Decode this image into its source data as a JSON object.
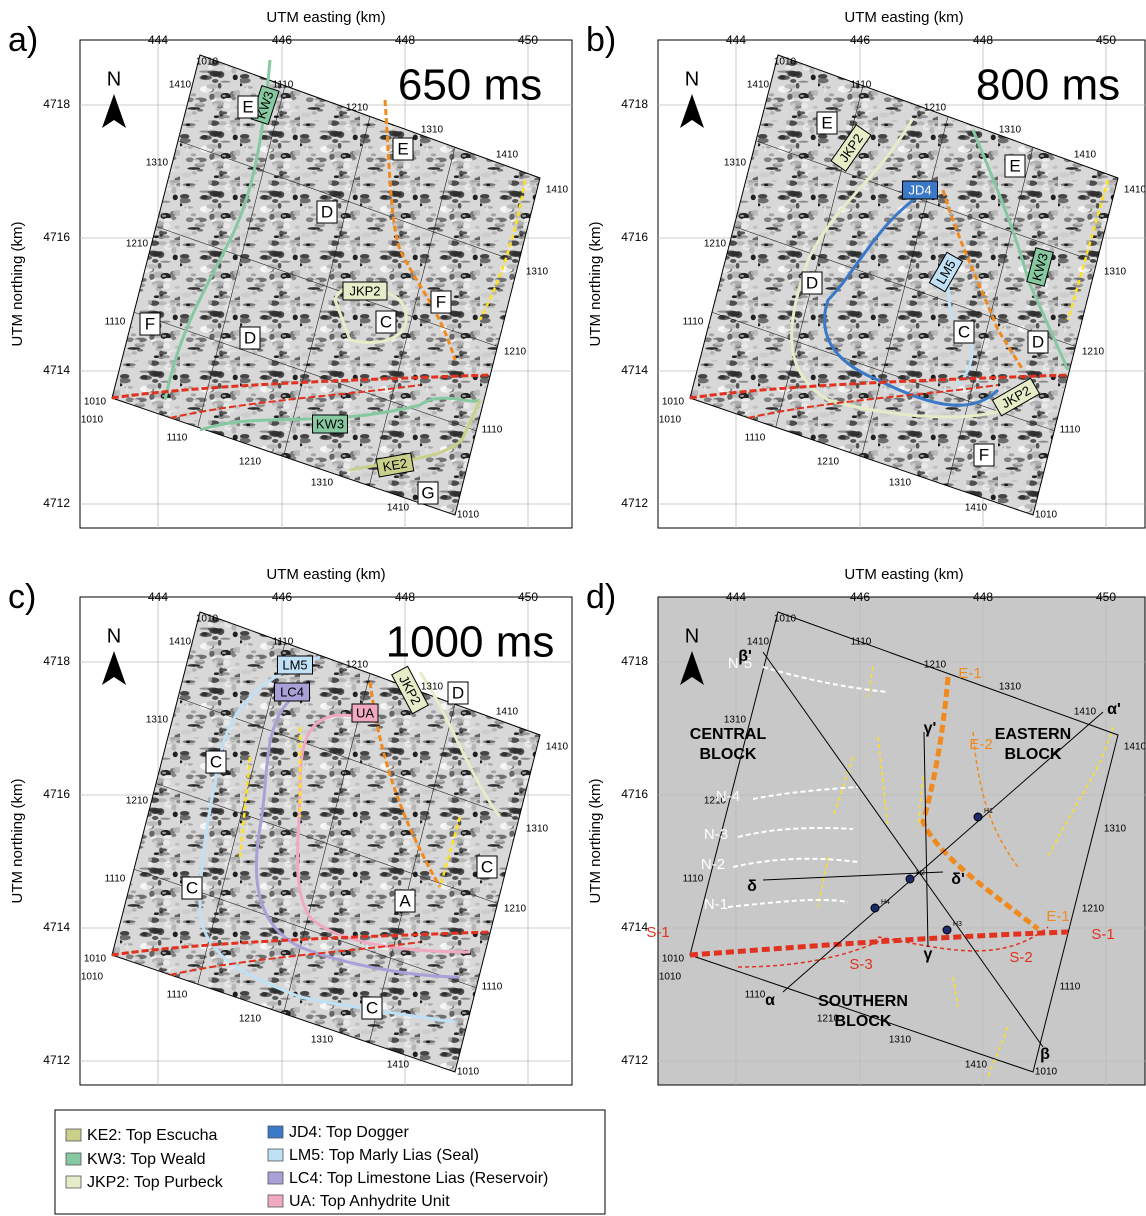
{
  "grid_labels": [
    "1010",
    "1110",
    "1210",
    "1310",
    "1410"
  ],
  "panels": [
    {
      "label": "a)",
      "x_title": "UTM easting (km)",
      "y_title": "UTM northing (km)",
      "xticks": [
        "444",
        "446",
        "448",
        "450"
      ],
      "yticks": [
        "4718",
        "4716",
        "4714",
        "4712"
      ],
      "north": "N",
      "time": "650 ms",
      "horizon_labels": [
        "KW3",
        "JKP2",
        "KW3",
        "KE2"
      ],
      "block_labels": [
        "E",
        "E",
        "D",
        "F",
        "F",
        "D",
        "C",
        "G"
      ]
    },
    {
      "label": "b)",
      "x_title": "UTM easting (km)",
      "y_title": "UTM northing (km)",
      "xticks": [
        "444",
        "446",
        "448",
        "450"
      ],
      "yticks": [
        "4718",
        "4716",
        "4714",
        "4712"
      ],
      "north": "N",
      "time": "800 ms",
      "horizon_labels": [
        "JKP2",
        "JD4",
        "LM5",
        "KW3",
        "JKP2"
      ],
      "block_labels": [
        "E",
        "E",
        "D",
        "C",
        "D",
        "F"
      ]
    },
    {
      "label": "c)",
      "x_title": "UTM easting (km)",
      "y_title": "UTM northing (km)",
      "xticks": [
        "444",
        "446",
        "448",
        "450"
      ],
      "yticks": [
        "4718",
        "4716",
        "4714",
        "4712"
      ],
      "north": "N",
      "time": "1000 ms",
      "horizon_labels": [
        "LM5",
        "LC4",
        "UA",
        "JKP2"
      ],
      "block_labels": [
        "C",
        "D",
        "C",
        "C",
        "A",
        "C"
      ]
    },
    {
      "label": "d)",
      "x_title": "UTM easting (km)",
      "y_title": "UTM northing (km)",
      "xticks": [
        "444",
        "446",
        "448",
        "450"
      ],
      "yticks": [
        "4718",
        "4716",
        "4714",
        "4712"
      ],
      "north": "N",
      "faults": [
        {
          "label": "S-1",
          "color": "#e0321e"
        },
        {
          "label": "S-1",
          "color": "#e0321e"
        },
        {
          "label": "S-2",
          "color": "#e0321e"
        },
        {
          "label": "S-3",
          "color": "#e0321e"
        },
        {
          "label": "E-1",
          "color": "#f08a1e"
        },
        {
          "label": "E-1",
          "color": "#f08a1e"
        },
        {
          "label": "E-2",
          "color": "#f08a1e"
        },
        {
          "label": "N-1",
          "color": "#ffffff"
        },
        {
          "label": "N-2",
          "color": "#ffffff"
        },
        {
          "label": "N-3",
          "color": "#ffffff"
        },
        {
          "label": "N-4",
          "color": "#ffffff"
        },
        {
          "label": "N-5",
          "color": "#ffffff"
        }
      ],
      "block_names": [
        [
          "CENTRAL",
          "BLOCK"
        ],
        [
          "EASTERN",
          "BLOCK"
        ],
        [
          "SOUTHERN",
          "BLOCK"
        ]
      ],
      "sections": [
        "α",
        "α'",
        "β",
        "β'",
        "γ",
        "γ'",
        "δ",
        "δ'"
      ],
      "wells": [
        "H1",
        "H2",
        "H3",
        "H4"
      ]
    }
  ],
  "legend": [
    {
      "label": "KE2: Top Escucha",
      "color": "#c8d08a"
    },
    {
      "label": "KW3: Top Weald",
      "color": "#86c9a0"
    },
    {
      "label": "JKP2: Top Purbeck",
      "color": "#e4ecc8"
    },
    {
      "label": "JD4: Top Dogger",
      "color": "#3a78c8"
    },
    {
      "label": "LM5: Top Marly Lias (Seal)",
      "color": "#bfe0f5"
    },
    {
      "label": "LC4: Top Limestone Lias (Reservoir)",
      "color": "#a9a0d8"
    },
    {
      "label": "UA: Top Anhydrite Unit",
      "color": "#f0a9c0"
    }
  ]
}
